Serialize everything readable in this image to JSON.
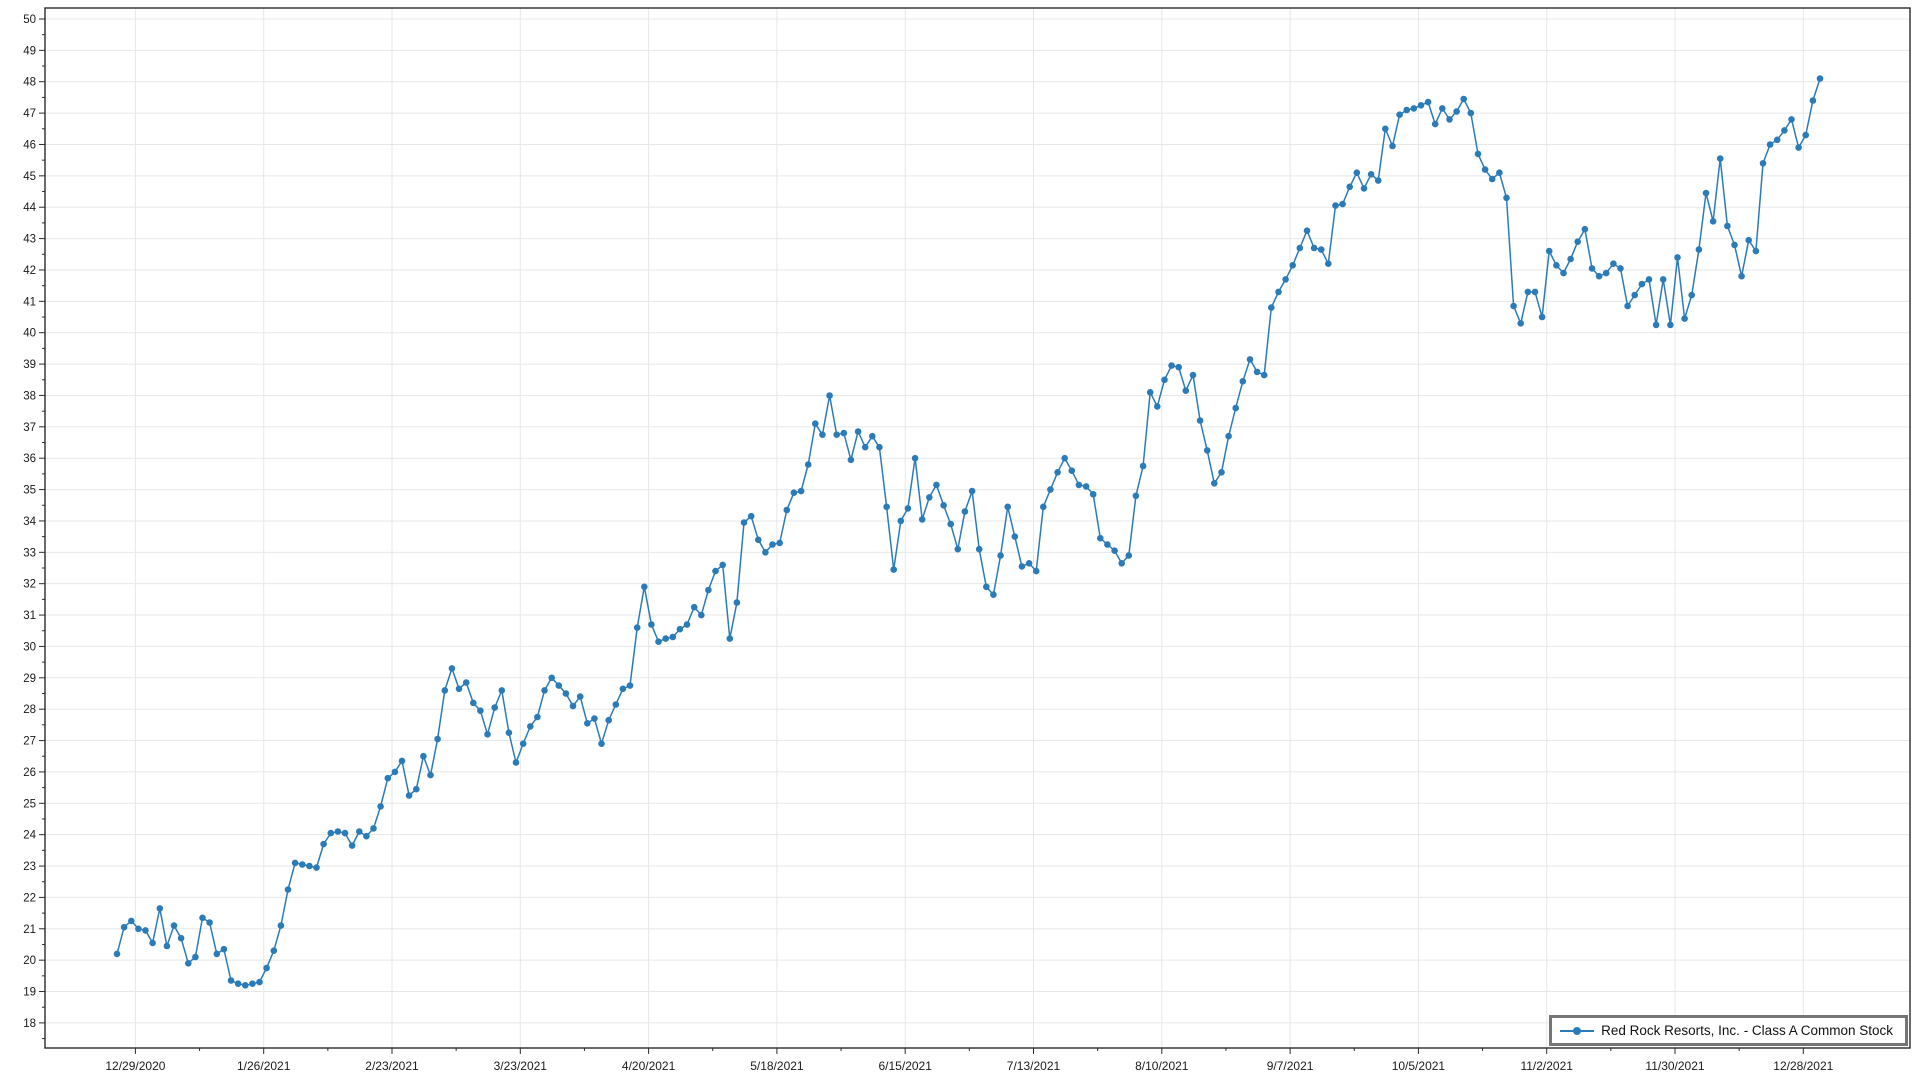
{
  "chart_data": {
    "type": "line",
    "title": "",
    "xlabel": "",
    "ylabel": "",
    "grid": true,
    "legend_position": "bottom-right",
    "marker": "circle",
    "line_color": "#2b7bb9",
    "grid_color": "#e7e7e7",
    "axis_color": "#2b2b2b",
    "tick_text_color": "#1a1a1a",
    "ylim": [
      17.2,
      50.35
    ],
    "y_tick_labels": [
      18,
      19,
      20,
      21,
      22,
      23,
      24,
      25,
      26,
      27,
      28,
      29,
      30,
      31,
      32,
      33,
      34,
      35,
      36,
      37,
      38,
      39,
      40,
      41,
      42,
      43,
      44,
      45,
      46,
      47,
      48,
      49,
      50
    ],
    "x_tick_labels": [
      "12/29/2020",
      "1/26/2021",
      "2/23/2021",
      "3/23/2021",
      "4/20/2021",
      "5/18/2021",
      "6/15/2021",
      "7/13/2021",
      "8/10/2021",
      "9/7/2021",
      "10/5/2021",
      "11/2/2021",
      "11/30/2021",
      "12/28/2021"
    ],
    "series": [
      {
        "name": "Red Rock Resorts, Inc. - Class A Common Stock",
        "values": [
          20.2,
          21.05,
          21.25,
          21.0,
          20.95,
          20.55,
          21.65,
          20.45,
          21.1,
          20.7,
          19.9,
          20.1,
          21.35,
          21.2,
          20.2,
          20.35,
          19.35,
          19.25,
          19.2,
          19.25,
          19.3,
          19.75,
          20.3,
          21.1,
          22.25,
          23.1,
          23.05,
          23.0,
          22.95,
          23.7,
          24.05,
          24.1,
          24.05,
          23.65,
          24.1,
          23.95,
          24.2,
          24.9,
          25.8,
          26.0,
          26.35,
          25.25,
          25.45,
          26.5,
          25.9,
          27.05,
          28.6,
          29.3,
          28.65,
          28.85,
          28.2,
          27.95,
          27.2,
          28.05,
          28.6,
          27.25,
          26.3,
          26.9,
          27.45,
          27.75,
          28.6,
          29.0,
          28.75,
          28.5,
          28.1,
          28.4,
          27.55,
          27.7,
          26.9,
          27.65,
          28.15,
          28.65,
          28.75,
          30.6,
          31.9,
          30.7,
          30.15,
          30.25,
          30.3,
          30.55,
          30.7,
          31.25,
          31.0,
          31.8,
          32.4,
          32.6,
          30.25,
          31.4,
          33.95,
          34.15,
          33.4,
          33.0,
          33.25,
          33.3,
          34.35,
          34.9,
          34.95,
          35.8,
          37.1,
          36.75,
          38.0,
          36.75,
          36.8,
          35.95,
          36.85,
          36.35,
          36.7,
          36.35,
          34.45,
          32.45,
          34.0,
          34.4,
          36.0,
          34.05,
          34.75,
          35.15,
          34.5,
          33.9,
          33.1,
          34.3,
          34.95,
          33.1,
          31.9,
          31.65,
          32.9,
          34.45,
          33.5,
          32.55,
          32.65,
          32.4,
          34.45,
          35.0,
          35.55,
          36.0,
          35.6,
          35.15,
          35.1,
          34.85,
          33.45,
          33.25,
          33.05,
          32.65,
          32.9,
          34.8,
          35.75,
          38.1,
          37.65,
          38.5,
          38.95,
          38.9,
          38.15,
          38.65,
          37.2,
          36.25,
          35.2,
          35.55,
          36.7,
          37.6,
          38.45,
          39.15,
          38.75,
          38.65,
          40.8,
          41.3,
          41.7,
          42.15,
          42.7,
          43.25,
          42.7,
          42.65,
          42.2,
          44.05,
          44.1,
          44.65,
          45.1,
          44.6,
          45.05,
          44.85,
          46.5,
          45.95,
          46.95,
          47.1,
          47.15,
          47.25,
          47.35,
          46.65,
          47.15,
          46.8,
          47.05,
          47.45,
          47.0,
          45.7,
          45.2,
          44.9,
          45.1,
          44.3,
          40.85,
          40.3,
          41.3,
          41.3,
          40.5,
          42.6,
          42.15,
          41.9,
          42.35,
          42.9,
          43.3,
          42.05,
          41.8,
          41.9,
          42.2,
          42.05,
          40.85,
          41.2,
          41.55,
          41.7,
          40.25,
          41.7,
          40.25,
          42.4,
          40.45,
          41.2,
          42.65,
          44.45,
          43.55,
          45.55,
          43.4,
          42.8,
          41.8,
          42.95,
          42.6,
          45.4,
          46.0,
          46.15,
          46.45,
          46.8,
          45.9,
          46.3,
          47.4,
          48.1
        ]
      }
    ]
  },
  "legend": {
    "label": "Red Rock Resorts, Inc. - Class A Common Stock"
  }
}
